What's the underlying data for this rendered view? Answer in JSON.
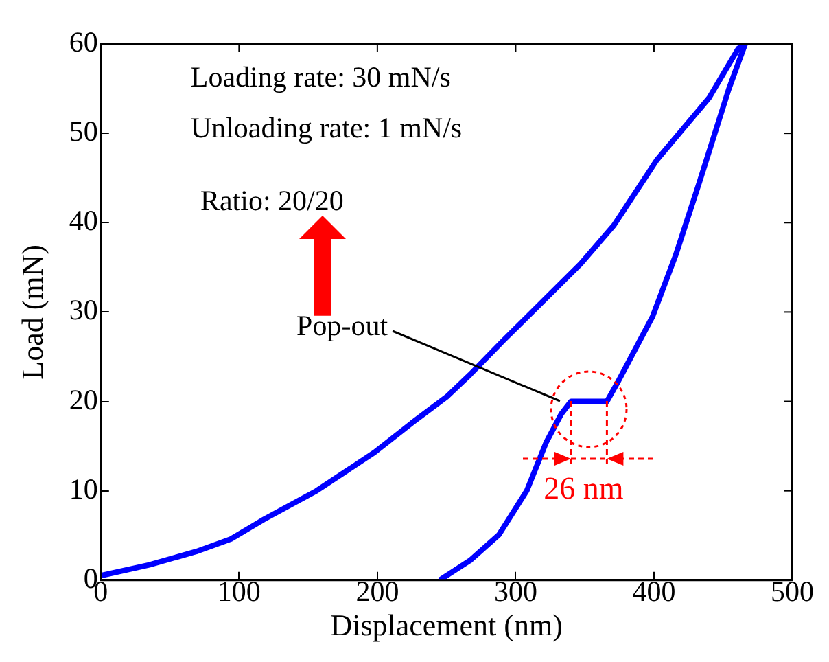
{
  "chart_data": {
    "type": "line",
    "xlabel": "Displacement (nm)",
    "ylabel": "Load (mN)",
    "xlim": [
      0,
      500
    ],
    "xticks": [
      0,
      100,
      200,
      300,
      400,
      500
    ],
    "ylim": [
      0,
      60
    ],
    "yticks": [
      0,
      10,
      20,
      30,
      40,
      50,
      60
    ],
    "grid": false,
    "legend": false,
    "marker": "none",
    "line_style": "solid",
    "series": [
      {
        "color": "#0000ff",
        "x": [
          0,
          35,
          69,
          94,
          118,
          156,
          198,
          225,
          250,
          267,
          291,
          319,
          347,
          371,
          402,
          440,
          461,
          466
        ],
        "values": [
          0.5,
          1.7,
          3.2,
          4.6,
          6.8,
          10,
          14.3,
          17.6,
          20.5,
          23,
          26.8,
          31.1,
          35.4,
          39.7,
          47,
          54,
          59.5,
          60
        ]
      },
      {
        "color": "#0000ff",
        "x": [
          466,
          454,
          433,
          416,
          399,
          374,
          366,
          340,
          333,
          322,
          308,
          288,
          267,
          245
        ],
        "values": [
          60,
          54.9,
          44.6,
          36.5,
          29.5,
          22.2,
          20,
          20,
          18.6,
          15.4,
          10,
          5.1,
          2.2,
          0
        ]
      }
    ],
    "annotations": [
      "Loading rate: 30 mN/s",
      "Unloading rate: 1 mN/s",
      "Ratio: 20/20",
      {
        "text": "Pop-out",
        "x": 340,
        "y": 20
      },
      {
        "text": "26 nm",
        "x": 353,
        "y": 20
      }
    ]
  }
}
